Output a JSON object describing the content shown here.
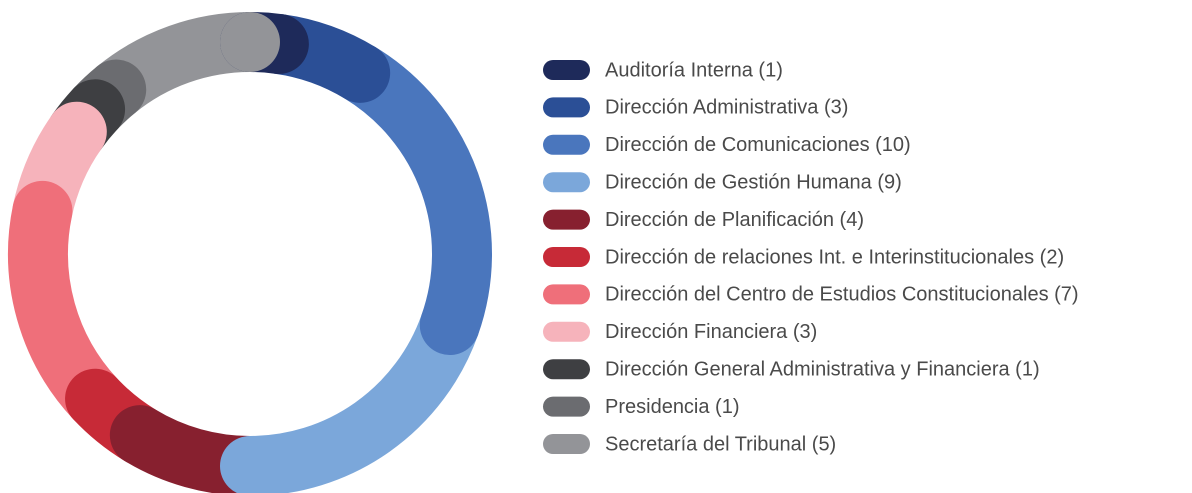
{
  "chart_data": {
    "type": "donut",
    "categories": [
      "Auditoría Interna (1)",
      "Dirección Administrativa (3)",
      "Dirección de Comunicaciones (10)",
      "Dirección de Gestión Humana (9)",
      "Dirección de Planificación (4)",
      "Dirección de relaciones Int. e Interinstitucionales (2)",
      "Dirección del Centro de Estudios Constitucionales (7)",
      "Dirección Financiera (3)",
      "Dirección General Administrativa y Financiera (1)",
      "Presidencia (1)",
      "Secretaría del Tribunal (5)"
    ],
    "values": [
      1,
      3,
      10,
      9,
      4,
      2,
      7,
      3,
      1,
      1,
      5
    ],
    "colors": [
      "#1e2a5a",
      "#2b4f96",
      "#4a76bd",
      "#7ba7da",
      "#87202f",
      "#c72a37",
      "#ef6f7a",
      "#f6b3bb",
      "#3e3f42",
      "#6b6c70",
      "#939498"
    ],
    "legend": "right"
  }
}
